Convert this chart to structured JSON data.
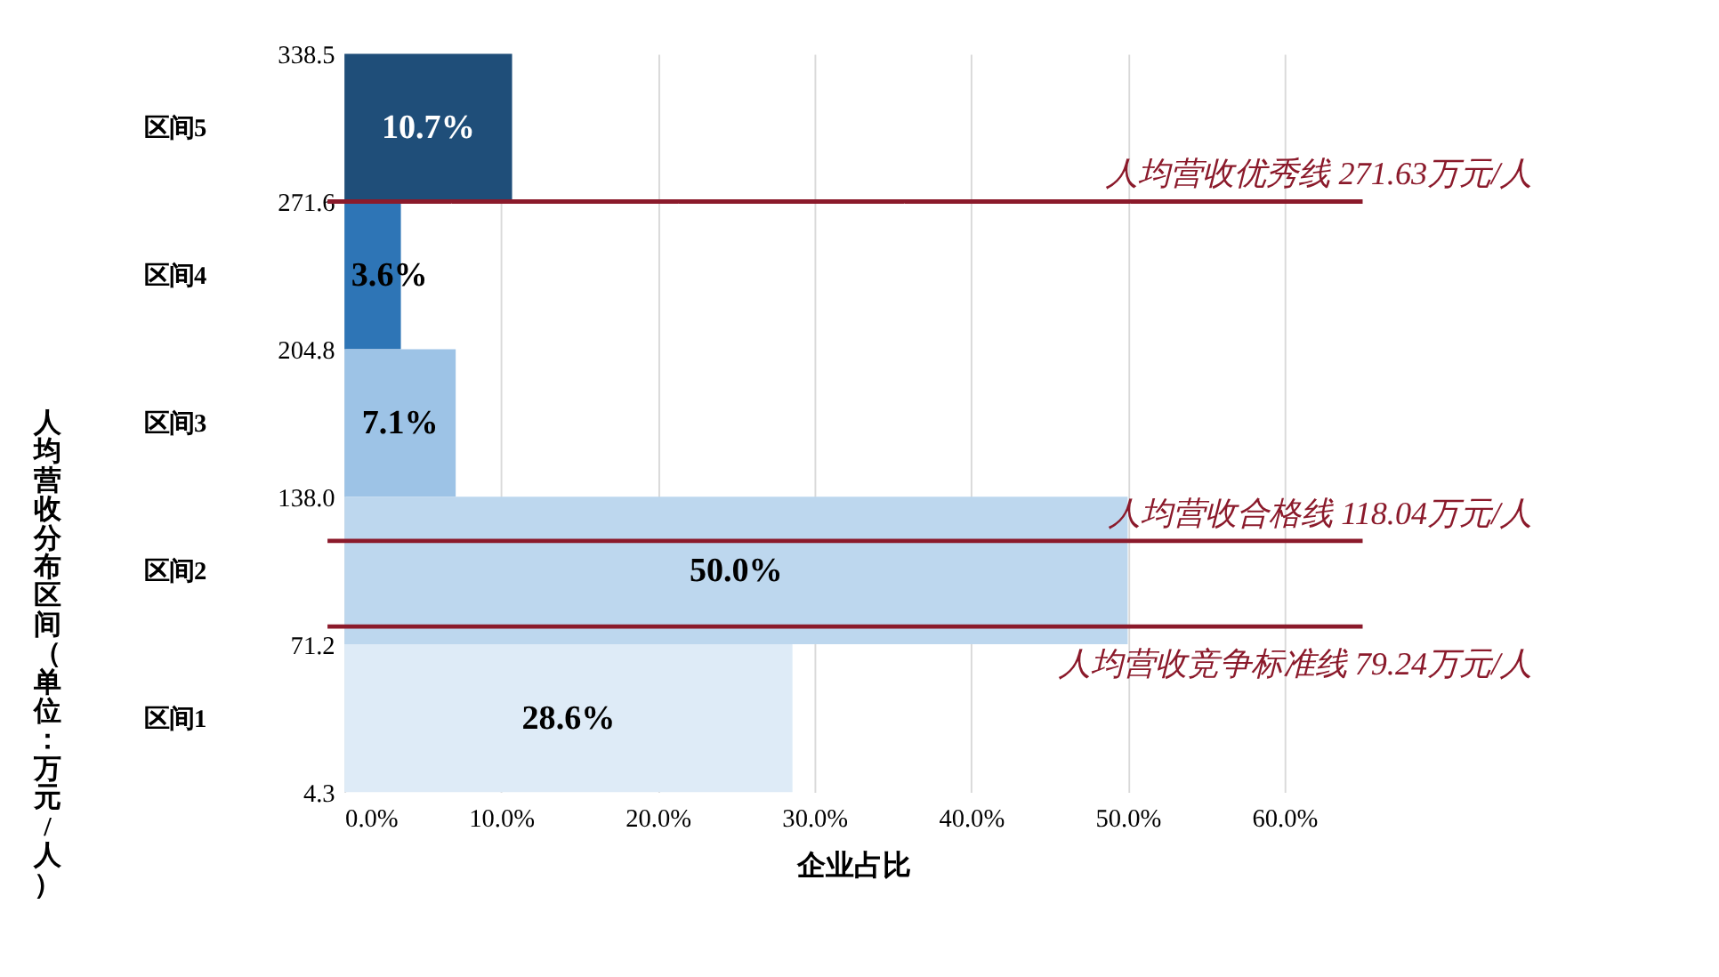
{
  "chart_data": {
    "type": "histogram",
    "orientation": "horizontal",
    "categories": [
      "区间5",
      "区间4",
      "区间3",
      "区间2",
      "区间1"
    ],
    "bins": [
      338.5,
      271.6,
      204.8,
      138.0,
      71.2,
      4.3
    ],
    "values": [
      10.7,
      3.6,
      7.1,
      50.0,
      28.6
    ],
    "colors": [
      "#1f4e79",
      "#2e75b6",
      "#9dc3e6",
      "#bdd7ee",
      "#deebf7"
    ],
    "value_labels": [
      "10.7%",
      "3.6%",
      "7.1%",
      "50.0%",
      "28.6%"
    ],
    "xlim": [
      0,
      65
    ],
    "xticks": [
      {
        "value": 0,
        "label": "0.0%"
      },
      {
        "value": 10,
        "label": "10.0%"
      },
      {
        "value": 20,
        "label": "20.0%"
      },
      {
        "value": 30,
        "label": "30.0%"
      },
      {
        "value": 40,
        "label": "40.0%"
      },
      {
        "value": 50,
        "label": "50.0%"
      },
      {
        "value": 60,
        "label": "60.0%"
      }
    ],
    "ylim": [
      4.3,
      338.5
    ],
    "yticks": [
      4.3,
      {
        "value": 71.2,
        "label": "71.2"
      },
      {
        "value": 138.0,
        "label": "138.0"
      },
      {
        "value": 204.8,
        "label": "204.8"
      },
      {
        "value": 271.6,
        "label": "271.6"
      },
      {
        "value": 338.5,
        "label": "338.5"
      }
    ],
    "xlabel": "企业占比",
    "ylabel": "人均营收分布区间（单位：万元/人）",
    "grid": "x",
    "ref_lines": [
      {
        "axis": "y",
        "value": 271.63,
        "label": "人均营收优秀线 271.63万元/人",
        "color": "#8b1a2b"
      },
      {
        "axis": "y",
        "value": 118.04,
        "label": "人均营收合格线 118.04万元/人",
        "color": "#8b1a2b"
      },
      {
        "axis": "y",
        "value": 79.24,
        "label": "人均营收竞争标准线 79.24万元/人",
        "color": "#8b1a2b"
      }
    ]
  }
}
